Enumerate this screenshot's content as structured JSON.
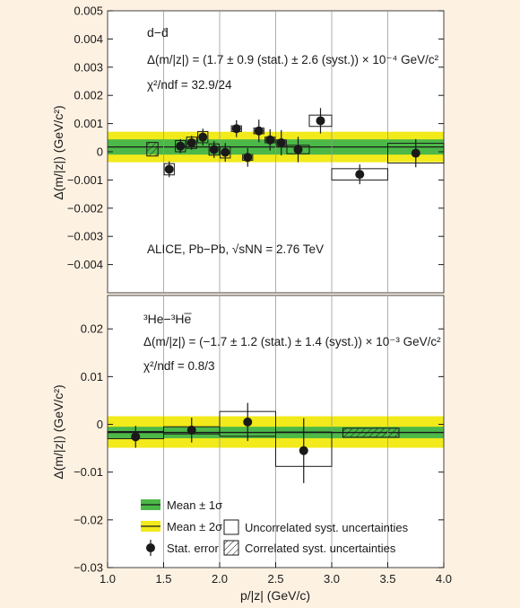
{
  "colors": {
    "background": "#fdf1e2",
    "band1": "#4cb848",
    "band2": "#f2ea1a",
    "ink": "#1a1a1a"
  },
  "chart_data": [
    {
      "type": "scatter",
      "panel": "top",
      "ylabel": "Δ(m/|z|) (GeV/c²)",
      "ylim": [
        -0.005,
        0.005
      ],
      "yticks": [
        0.005,
        0.004,
        0.003,
        0.002,
        0.001,
        0,
        -0.001,
        -0.002,
        -0.003,
        -0.004
      ],
      "ytick_labels": [
        "0.005",
        "0.004",
        "0.003",
        "0.002",
        "0.001",
        "0",
        "−0.001",
        "−0.002",
        "−0.003",
        "−0.004"
      ],
      "xlim": [
        1.0,
        4.0
      ],
      "annotations": {
        "species": "d−d̄",
        "result": "Δ(m/|z|) = (1.7 ± 0.9 (stat.) ± 2.6 (syst.)) × 10⁻⁴ GeV/c²",
        "chi2": "χ²/ndf = 32.9/24",
        "experiment": "ALICE, Pb−Pb, √sNN = 2.76 TeV"
      },
      "mean": 0.00017,
      "band_1sigma": [
        -0.0001,
        0.00044
      ],
      "band_2sigma": [
        -0.00037,
        0.00071
      ],
      "points": [
        {
          "x": 1.55,
          "y": -0.00062,
          "stat": 0.00028,
          "syst_w": 0.09,
          "syst_h": 0.0004
        },
        {
          "x": 1.65,
          "y": 0.0002,
          "stat": 0.00025,
          "syst_w": 0.09,
          "syst_h": 0.0004
        },
        {
          "x": 1.75,
          "y": 0.00032,
          "stat": 0.00025,
          "syst_w": 0.09,
          "syst_h": 0.0004
        },
        {
          "x": 1.85,
          "y": 0.00052,
          "stat": 0.0003,
          "syst_w": 0.09,
          "syst_h": 0.0004
        },
        {
          "x": 1.95,
          "y": 8e-05,
          "stat": 0.0003,
          "syst_w": 0.09,
          "syst_h": 0.0004
        },
        {
          "x": 2.05,
          "y": -2e-05,
          "stat": 0.00033,
          "syst_w": 0.09,
          "syst_h": 0.0004
        },
        {
          "x": 2.15,
          "y": 0.00082,
          "stat": 0.0003,
          "syst_w": 0.09,
          "syst_h": 0.0002
        },
        {
          "x": 2.25,
          "y": -0.0002,
          "stat": 0.00033,
          "syst_w": 0.09,
          "syst_h": 0.0002
        },
        {
          "x": 2.35,
          "y": 0.00074,
          "stat": 0.0004,
          "syst_w": 0.09,
          "syst_h": 0.0002
        },
        {
          "x": 2.45,
          "y": 0.00042,
          "stat": 0.00038,
          "syst_w": 0.09,
          "syst_h": 0.0002
        },
        {
          "x": 2.55,
          "y": 0.00032,
          "stat": 0.00045,
          "syst_w": 0.09,
          "syst_h": 0.0002
        },
        {
          "x": 2.7,
          "y": 8e-05,
          "stat": 0.00045,
          "syst_w": 0.2,
          "syst_h": 0.0003
        },
        {
          "x": 2.9,
          "y": 0.0011,
          "stat": 0.00045,
          "syst_w": 0.2,
          "syst_h": 0.0004
        },
        {
          "x": 3.25,
          "y": -0.0008,
          "stat": 0.00035,
          "syst_w": 0.5,
          "syst_h": 0.0004
        },
        {
          "x": 3.75,
          "y": -5e-05,
          "stat": 0.0005,
          "syst_w": 0.5,
          "syst_h": 0.0007
        }
      ],
      "correlated": {
        "x": [
          1.35,
          1.45
        ],
        "y": [
          -0.00015,
          0.00033
        ]
      }
    },
    {
      "type": "scatter",
      "panel": "bottom",
      "ylabel": "Δ(m/|z|) (GeV/c²)",
      "xlabel": "p/|z| (GeV/c)",
      "ylim": [
        -0.03,
        0.027
      ],
      "yticks": [
        0.02,
        0.01,
        0,
        -0.01,
        -0.02,
        -0.03
      ],
      "ytick_labels": [
        "0.02",
        "0.01",
        "0",
        "−0.01",
        "−0.02",
        "−0.03"
      ],
      "xlim": [
        1.0,
        4.0
      ],
      "xticks": [
        1.0,
        1.5,
        2.0,
        2.5,
        3.0,
        3.5,
        4.0
      ],
      "xtick_labels": [
        "1.0",
        "1.5",
        "2.0",
        "2.5",
        "3.0",
        "3.5",
        "4.0"
      ],
      "annotations": {
        "species": "³He−³He̅",
        "result": "Δ(m/|z|) = (−1.7 ± 1.2 (stat.) ± 1.4 (syst.)) × 10⁻³ GeV/c²",
        "chi2": "χ²/ndf = 0.8/3"
      },
      "mean": -0.0017,
      "band_1sigma": [
        -0.0029,
        -0.0005
      ],
      "band_2sigma": [
        -0.0049,
        0.0017
      ],
      "points": [
        {
          "x": 1.25,
          "y": -0.0026,
          "stat": 0.0023,
          "x0": 1.0,
          "x1": 1.5,
          "sy0": -0.003,
          "sy1": -0.0015
        },
        {
          "x": 1.75,
          "y": -0.0012,
          "stat": 0.0026,
          "x0": 1.5,
          "x1": 2.0,
          "sy0": -0.002,
          "sy1": -0.0005
        },
        {
          "x": 2.25,
          "y": 0.0005,
          "stat": 0.004,
          "x0": 2.0,
          "x1": 2.5,
          "sy0": -0.0025,
          "sy1": 0.0027
        },
        {
          "x": 2.75,
          "y": -0.0055,
          "stat": 0.0068,
          "x0": 2.5,
          "x1": 3.0,
          "sy0": -0.0088,
          "sy1": -0.0016
        }
      ],
      "correlated": {
        "x": [
          3.1,
          3.6
        ],
        "y": [
          -0.0027,
          -0.0008
        ]
      },
      "legend": [
        {
          "label": "Mean ± 1σ",
          "kind": "band1"
        },
        {
          "label": "Mean ± 2σ",
          "kind": "band2"
        },
        {
          "label": "Stat. error",
          "kind": "marker"
        },
        {
          "label": "Uncorrelated syst. uncertainties",
          "kind": "box"
        },
        {
          "label": "Correlated syst. uncertainties",
          "kind": "hatched"
        }
      ]
    }
  ]
}
